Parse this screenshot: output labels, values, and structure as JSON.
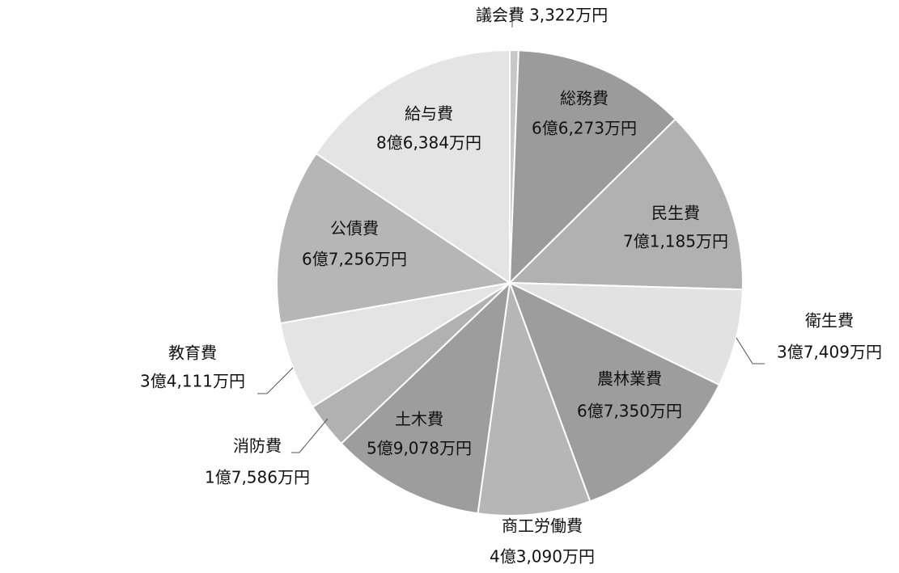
{
  "chart_data": {
    "type": "pie",
    "categories": [
      "議会費",
      "総務費",
      "民生費",
      "衛生費",
      "農林業費",
      "商工労働費",
      "土木費",
      "消防費",
      "教育費",
      "公債費",
      "給与費"
    ],
    "values": [
      3322,
      66273,
      71185,
      37409,
      67350,
      43090,
      59078,
      17586,
      34111,
      67256,
      86384
    ],
    "value_labels": [
      "3,322万円",
      "6億6,273万円",
      "7億1,185万円",
      "3億7,409万円",
      "6億7,350万円",
      "4億3,090万円",
      "5億9,078万円",
      "1億7,586万円",
      "3億4,111万円",
      "6億7,256万円",
      "8億6,384万円"
    ],
    "colors": [
      "#c8c8c8",
      "#9b9b9b",
      "#b1b1b1",
      "#e2e2e2",
      "#9d9d9d",
      "#b6b6b6",
      "#9d9d9d",
      "#b1b1b1",
      "#e4e4e4",
      "#b6b6b6",
      "#e4e4e4"
    ]
  }
}
